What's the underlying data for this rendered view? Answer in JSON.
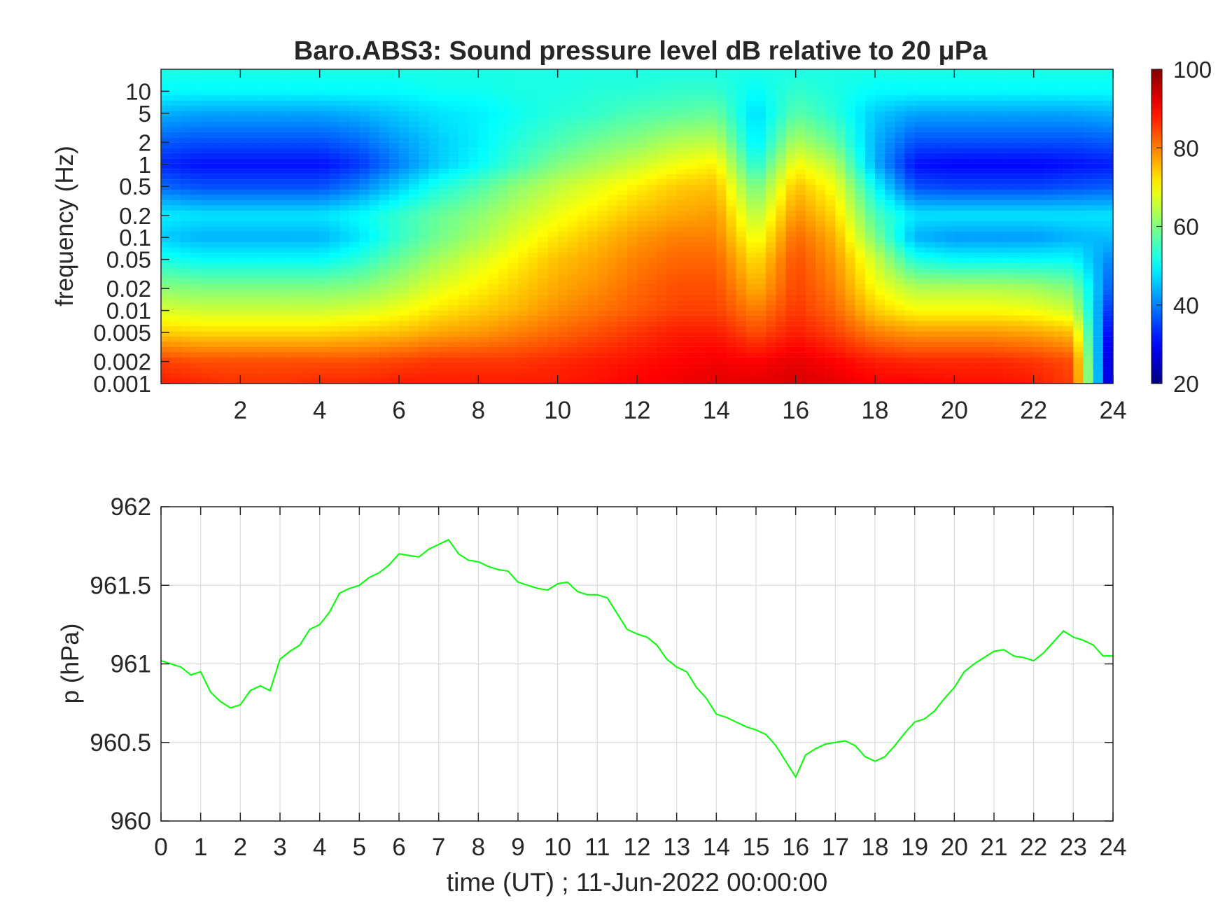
{
  "chart_data": [
    {
      "type": "heatmap",
      "title": "Baro.ABS3: Sound pressure level dB relative to 20 μPa",
      "ylabel": "frequency (Hz)",
      "xlabel": "",
      "yscale": "log",
      "xlim": [
        0,
        24
      ],
      "ylim": [
        0.001,
        20
      ],
      "xticks": [
        2,
        4,
        6,
        8,
        10,
        12,
        14,
        16,
        18,
        20,
        22,
        24
      ],
      "xtick_labels": [
        "2",
        "4",
        "6",
        "8",
        "10",
        "12",
        "14",
        "16",
        "18",
        "20",
        "22",
        "24"
      ],
      "yticks": [
        0.001,
        0.002,
        0.005,
        0.01,
        0.02,
        0.05,
        0.1,
        0.2,
        0.5,
        1,
        2,
        5,
        10
      ],
      "ytick_labels": [
        "0.001",
        "0.002",
        "0.005",
        "0.01",
        "0.02",
        "0.05",
        "0.1",
        "0.2",
        "0.5",
        "1",
        "2",
        "5",
        "10"
      ],
      "colormap": "jet",
      "colorbar": {
        "range": [
          20,
          100
        ],
        "ticks": [
          20,
          40,
          60,
          80,
          100
        ],
        "tick_labels": [
          "20",
          "40",
          "60",
          "80",
          "100"
        ]
      },
      "time_hours": [
        0,
        1,
        2,
        3,
        4,
        5,
        6,
        7,
        8,
        9,
        10,
        11,
        12,
        13,
        14,
        15,
        16,
        17,
        18,
        19,
        20,
        21,
        22,
        23,
        24
      ],
      "frequency_hz": [
        0.001,
        0.002,
        0.005,
        0.01,
        0.02,
        0.05,
        0.1,
        0.2,
        0.5,
        1,
        2,
        5,
        10,
        20
      ],
      "spl_db": [
        [
          88,
          87,
          86,
          86,
          87,
          87,
          88,
          88,
          88,
          88,
          88,
          89,
          90,
          91,
          92,
          92,
          93,
          92,
          90,
          90,
          89,
          89,
          88,
          85,
          20
        ],
        [
          85,
          84,
          84,
          84,
          84,
          84,
          85,
          86,
          86,
          86,
          87,
          88,
          89,
          90,
          91,
          90,
          92,
          90,
          88,
          87,
          87,
          87,
          86,
          84,
          20
        ],
        [
          74,
          73,
          73,
          73,
          73,
          74,
          75,
          77,
          78,
          80,
          82,
          84,
          86,
          88,
          88,
          84,
          88,
          85,
          80,
          78,
          78,
          78,
          77,
          75,
          25
        ],
        [
          67,
          66,
          66,
          66,
          66,
          67,
          69,
          72,
          74,
          76,
          79,
          81,
          83,
          85,
          85,
          80,
          86,
          82,
          74,
          70,
          70,
          70,
          69,
          66,
          30
        ],
        [
          61,
          60,
          60,
          60,
          60,
          61,
          64,
          68,
          71,
          74,
          77,
          79,
          82,
          84,
          84,
          76,
          85,
          80,
          70,
          64,
          64,
          64,
          63,
          60,
          35
        ],
        [
          52,
          50,
          50,
          50,
          50,
          53,
          58,
          63,
          67,
          71,
          75,
          77,
          80,
          82,
          82,
          72,
          84,
          78,
          66,
          52,
          50,
          50,
          50,
          50,
          40
        ],
        [
          46,
          44,
          44,
          44,
          44,
          48,
          54,
          59,
          63,
          68,
          72,
          75,
          78,
          80,
          80,
          68,
          82,
          76,
          60,
          44,
          42,
          42,
          42,
          44,
          45
        ],
        [
          49,
          48,
          48,
          48,
          48,
          50,
          54,
          58,
          61,
          65,
          69,
          72,
          75,
          77,
          78,
          64,
          79,
          73,
          56,
          48,
          48,
          48,
          48,
          48,
          48
        ],
        [
          38,
          36,
          36,
          36,
          36,
          40,
          46,
          52,
          56,
          61,
          65,
          68,
          71,
          74,
          75,
          58,
          75,
          69,
          50,
          36,
          35,
          35,
          35,
          36,
          37
        ],
        [
          33,
          31,
          31,
          31,
          31,
          34,
          40,
          46,
          50,
          55,
          60,
          63,
          66,
          69,
          71,
          52,
          70,
          64,
          44,
          31,
          30,
          30,
          30,
          31,
          32
        ],
        [
          37,
          36,
          36,
          36,
          36,
          38,
          42,
          46,
          49,
          53,
          56,
          59,
          61,
          64,
          65,
          48,
          64,
          58,
          44,
          36,
          36,
          36,
          36,
          36,
          37
        ],
        [
          44,
          43,
          43,
          43,
          43,
          44,
          46,
          48,
          49,
          51,
          53,
          54,
          56,
          57,
          58,
          47,
          57,
          53,
          46,
          43,
          43,
          43,
          43,
          43,
          44
        ],
        [
          50,
          50,
          50,
          50,
          50,
          50,
          50,
          51,
          51,
          52,
          52,
          53,
          53,
          54,
          54,
          50,
          54,
          52,
          50,
          50,
          50,
          50,
          50,
          50,
          50
        ],
        [
          52,
          52,
          52,
          52,
          52,
          52,
          52,
          52,
          52,
          52,
          52,
          52,
          52,
          52,
          52,
          52,
          52,
          52,
          52,
          52,
          52,
          52,
          52,
          52,
          52
        ]
      ]
    },
    {
      "type": "line",
      "title": "",
      "xlabel": "time (UT) ; 11-Jun-2022 00:00:00",
      "ylabel": "p (hPa)",
      "xlim": [
        0,
        24
      ],
      "ylim": [
        960,
        962
      ],
      "grid": true,
      "xticks": [
        0,
        1,
        2,
        3,
        4,
        5,
        6,
        7,
        8,
        9,
        10,
        11,
        12,
        13,
        14,
        15,
        16,
        17,
        18,
        19,
        20,
        21,
        22,
        23,
        24
      ],
      "xtick_labels": [
        "0",
        "1",
        "2",
        "3",
        "4",
        "5",
        "6",
        "7",
        "8",
        "9",
        "10",
        "11",
        "12",
        "13",
        "14",
        "15",
        "16",
        "17",
        "18",
        "19",
        "20",
        "21",
        "22",
        "23",
        "24"
      ],
      "yticks": [
        960,
        960.5,
        961,
        961.5,
        962
      ],
      "ytick_labels": [
        "960",
        "960.5",
        "961",
        "961.5",
        "962"
      ],
      "series": [
        {
          "color": "#00ff00",
          "x": [
            0,
            0.25,
            0.5,
            0.75,
            1.0,
            1.25,
            1.5,
            1.75,
            2.0,
            2.25,
            2.5,
            2.75,
            3.0,
            3.25,
            3.5,
            3.75,
            4.0,
            4.25,
            4.5,
            4.75,
            5.0,
            5.25,
            5.5,
            5.75,
            6.0,
            6.25,
            6.5,
            6.75,
            7.0,
            7.25,
            7.5,
            7.75,
            8.0,
            8.25,
            8.5,
            8.75,
            9.0,
            9.25,
            9.5,
            9.75,
            10.0,
            10.25,
            10.5,
            10.75,
            11.0,
            11.25,
            11.5,
            11.75,
            12.0,
            12.25,
            12.5,
            12.75,
            13.0,
            13.25,
            13.5,
            13.75,
            14.0,
            14.25,
            14.5,
            14.75,
            15.0,
            15.25,
            15.5,
            15.75,
            16.0,
            16.25,
            16.5,
            16.75,
            17.0,
            17.25,
            17.5,
            17.75,
            18.0,
            18.25,
            18.5,
            18.75,
            19.0,
            19.25,
            19.5,
            19.75,
            20.0,
            20.25,
            20.5,
            20.75,
            21.0,
            21.25,
            21.5,
            21.75,
            22.0,
            22.25,
            22.5,
            22.75,
            23.0,
            23.25,
            23.5,
            23.75,
            24.0
          ],
          "y": [
            961.02,
            961.0,
            960.98,
            960.93,
            960.95,
            960.82,
            960.76,
            960.72,
            960.74,
            960.83,
            960.86,
            960.83,
            961.03,
            961.08,
            961.12,
            961.22,
            961.25,
            961.33,
            961.45,
            961.48,
            961.5,
            961.55,
            961.58,
            961.63,
            961.7,
            961.69,
            961.68,
            961.73,
            961.76,
            961.79,
            961.7,
            961.66,
            961.65,
            961.62,
            961.6,
            961.59,
            961.52,
            961.5,
            961.48,
            961.47,
            961.51,
            961.52,
            961.46,
            961.44,
            961.44,
            961.42,
            961.32,
            961.22,
            961.19,
            961.17,
            961.12,
            961.03,
            960.98,
            960.95,
            960.85,
            960.78,
            960.68,
            960.66,
            960.63,
            960.6,
            960.58,
            960.55,
            960.48,
            960.38,
            960.28,
            960.42,
            960.46,
            960.49,
            960.5,
            960.51,
            960.48,
            960.41,
            960.38,
            960.41,
            960.48,
            960.56,
            960.63,
            960.65,
            960.7,
            960.78,
            960.85,
            960.95,
            961.0,
            961.04,
            961.08,
            961.09,
            961.05,
            961.04,
            961.02,
            961.07,
            961.14,
            961.21,
            961.17,
            961.15,
            961.12,
            961.05,
            961.05
          ]
        }
      ]
    }
  ]
}
